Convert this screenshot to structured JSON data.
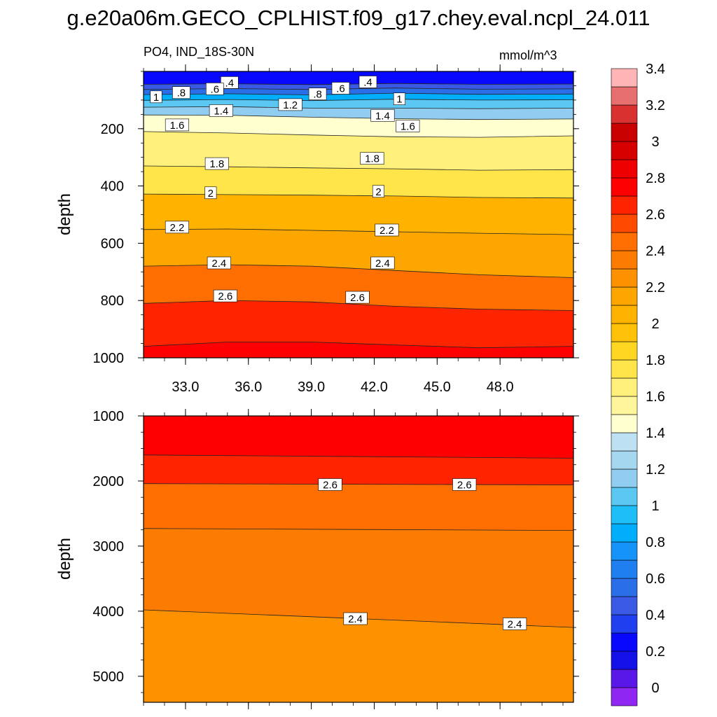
{
  "figure": {
    "title": "g.e20a06m.GECO_CPLHIST.f09_g17.chey.eval.ncpl_24.011",
    "left_string": "PO4, IND_18S-30N",
    "right_string": "mmol/m^3"
  },
  "chart_data": [
    {
      "type": "heatmap",
      "panel": "upper",
      "title": "PO4, IND_18S-30N",
      "units": "mmol/m^3",
      "xlabel": "",
      "ylabel": "depth",
      "xlim": [
        31.0,
        51.5
      ],
      "ylim": [
        1000,
        0
      ],
      "xticks": [
        33.0,
        36.0,
        39.0,
        42.0,
        45.0,
        48.0
      ],
      "xtick_labels": [
        "33.0",
        "36.0",
        "39.0",
        "42.0",
        "45.0",
        "48.0"
      ],
      "yticks": [
        200,
        400,
        600,
        800,
        1000
      ],
      "ytick_labels": [
        "200",
        "400",
        "600",
        "800",
        "1000"
      ],
      "contour_lines": [
        {
          "level": 0.4,
          "x": [
            31,
            35,
            39,
            43,
            47,
            51.5
          ],
          "depth": [
            45,
            43,
            46,
            42,
            45,
            44
          ]
        },
        {
          "level": 0.6,
          "x": [
            31,
            35,
            39,
            43,
            47,
            51.5
          ],
          "depth": [
            63,
            60,
            63,
            58,
            62,
            61
          ]
        },
        {
          "level": 0.8,
          "x": [
            31,
            35,
            39,
            43,
            47,
            51.5
          ],
          "depth": [
            81,
            78,
            82,
            76,
            80,
            79
          ]
        },
        {
          "level": 1.0,
          "x": [
            31,
            35,
            39,
            43,
            47,
            51.5
          ],
          "depth": [
            101,
            98,
            102,
            97,
            100,
            99
          ]
        },
        {
          "level": 1.2,
          "x": [
            31,
            35,
            39,
            43,
            47,
            51.5
          ],
          "depth": [
            125,
            123,
            128,
            128,
            130,
            128
          ]
        },
        {
          "level": 1.4,
          "x": [
            31,
            35,
            39,
            43,
            47,
            51.5
          ],
          "depth": [
            152,
            153,
            160,
            165,
            168,
            166
          ]
        },
        {
          "level": 1.6,
          "x": [
            31,
            35,
            39,
            43,
            47,
            51.5
          ],
          "depth": [
            210,
            215,
            222,
            228,
            230,
            225
          ]
        },
        {
          "level": 1.8,
          "x": [
            31,
            35,
            39,
            43,
            47,
            51.5
          ],
          "depth": [
            330,
            333,
            337,
            340,
            345,
            343
          ]
        },
        {
          "level": 2.0,
          "x": [
            31,
            35,
            39,
            43,
            47,
            51.5
          ],
          "depth": [
            428,
            430,
            432,
            435,
            440,
            442
          ]
        },
        {
          "level": 2.2,
          "x": [
            31,
            35,
            39,
            43,
            47,
            51.5
          ],
          "depth": [
            552,
            550,
            555,
            560,
            565,
            570
          ]
        },
        {
          "level": 2.4,
          "x": [
            31,
            35,
            39,
            43,
            47,
            51.5
          ],
          "depth": [
            680,
            675,
            680,
            695,
            710,
            720
          ]
        },
        {
          "level": 2.6,
          "x": [
            31,
            35,
            39,
            43,
            47,
            51.5
          ],
          "depth": [
            810,
            800,
            805,
            820,
            830,
            835
          ]
        },
        {
          "level": 2.8,
          "x": [
            31,
            35,
            39,
            43,
            47,
            51.5
          ],
          "depth": [
            960,
            945,
            945,
            955,
            965,
            960
          ]
        }
      ],
      "labels": [
        {
          "text": ".4",
          "x": 35.1,
          "depth": 40
        },
        {
          "text": ".6",
          "x": 34.4,
          "depth": 62
        },
        {
          "text": ".8",
          "x": 32.8,
          "depth": 75
        },
        {
          "text": "1",
          "x": 31.6,
          "depth": 90
        },
        {
          "text": "1.4",
          "x": 34.7,
          "depth": 138
        },
        {
          "text": "1.6",
          "x": 32.6,
          "depth": 188
        },
        {
          "text": "1.8",
          "x": 34.5,
          "depth": 323
        },
        {
          "text": "2",
          "x": 34.2,
          "depth": 425
        },
        {
          "text": "2.2",
          "x": 32.6,
          "depth": 545
        },
        {
          "text": "2.4",
          "x": 34.6,
          "depth": 670
        },
        {
          "text": "2.6",
          "x": 34.9,
          "depth": 785
        },
        {
          "text": ".4",
          "x": 41.7,
          "depth": 38
        },
        {
          "text": ".6",
          "x": 40.4,
          "depth": 60
        },
        {
          "text": ".8",
          "x": 39.3,
          "depth": 80
        },
        {
          "text": "1",
          "x": 43.2,
          "depth": 97
        },
        {
          "text": "1.2",
          "x": 38.0,
          "depth": 117
        },
        {
          "text": "1.4",
          "x": 42.4,
          "depth": 155
        },
        {
          "text": "1.6",
          "x": 43.6,
          "depth": 192
        },
        {
          "text": "1.8",
          "x": 41.9,
          "depth": 305
        },
        {
          "text": "2",
          "x": 42.2,
          "depth": 420
        },
        {
          "text": "2.2",
          "x": 42.6,
          "depth": 555
        },
        {
          "text": "2.4",
          "x": 42.4,
          "depth": 670
        },
        {
          "text": "2.6",
          "x": 41.2,
          "depth": 790
        }
      ]
    },
    {
      "type": "heatmap",
      "panel": "lower",
      "xlabel": "",
      "ylabel": "depth",
      "xlim": [
        31.0,
        51.5
      ],
      "ylim": [
        5400,
        1000
      ],
      "xticks": [
        33.0,
        36.0,
        39.0,
        42.0,
        45.0,
        48.0
      ],
      "yticks": [
        1000,
        2000,
        3000,
        4000,
        5000
      ],
      "ytick_labels": [
        "1000",
        "2000",
        "3000",
        "4000",
        "5000"
      ],
      "contour_lines": [
        {
          "level": 2.8,
          "x": [
            31,
            51.5
          ],
          "depth": [
            1600,
            1650
          ]
        },
        {
          "level": 2.6,
          "x": [
            31,
            51.5
          ],
          "depth": [
            2040,
            2060
          ]
        },
        {
          "level": 2.5,
          "x": [
            31,
            51.5
          ],
          "depth": [
            2730,
            2760
          ]
        },
        {
          "level": 2.4,
          "x": [
            31,
            51.5
          ],
          "depth": [
            3980,
            4250
          ]
        }
      ],
      "labels": [
        {
          "text": "2.6",
          "x": 39.9,
          "depth": 2060
        },
        {
          "text": "2.6",
          "x": 46.3,
          "depth": 2060
        },
        {
          "text": "2.4",
          "x": 41.1,
          "depth": 4120
        },
        {
          "text": "2.4",
          "x": 48.7,
          "depth": 4200
        }
      ]
    }
  ],
  "colorbar": {
    "levels": [
      0,
      0.2,
      0.4,
      0.6,
      0.8,
      1,
      1.2,
      1.4,
      1.6,
      1.8,
      2,
      2.2,
      2.4,
      2.6,
      2.8,
      3,
      3.2,
      3.4
    ],
    "level_labels": [
      "0",
      "0.2",
      "0.4",
      "0.6",
      "0.8",
      "1",
      "1.2",
      "1.4",
      "1.6",
      "1.8",
      "2",
      "2.2",
      "2.4",
      "2.6",
      "2.8",
      "3",
      "3.2",
      "3.4"
    ],
    "colors": [
      "#8f26f2",
      "#5a18e8",
      "#1410e8",
      "#0808ff",
      "#2040f0",
      "#3a5ae6",
      "#2a6ee8",
      "#1f7ef0",
      "#1593f8",
      "#00aefc",
      "#1ebef8",
      "#5bc8f3",
      "#90cdf0",
      "#a5d7f1",
      "#bde1f3",
      "#ffffcf",
      "#fff59c",
      "#ffef7b",
      "#ffe54a",
      "#ffd622",
      "#ffc209",
      "#ffb300",
      "#fea600",
      "#fe9100",
      "#fb7c00",
      "#fe6e00",
      "#ff4a00",
      "#ff2400",
      "#ff0000",
      "#ef0000",
      "#d70000",
      "#c80000",
      "#d93030",
      "#e86f6f",
      "#ffb5b5"
    ]
  }
}
